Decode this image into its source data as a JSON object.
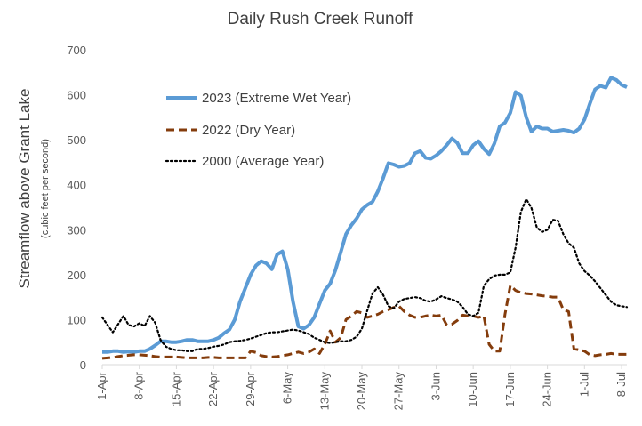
{
  "chart_data": {
    "type": "line",
    "title": "Daily Rush Creek Runoff",
    "ylabel": "Streamflow above Grant Lake",
    "ylabel_sub": "(cubic feet per second)",
    "xlabel": "",
    "ylim": [
      0,
      700
    ],
    "yticks": [
      0,
      100,
      200,
      300,
      400,
      500,
      600,
      700
    ],
    "grid": false,
    "legend_position": "upper-left",
    "x_start_date": "1-Apr",
    "x_tick_labels": [
      "1-Apr",
      "8-Apr",
      "15-Apr",
      "22-Apr",
      "29-Apr",
      "6-May",
      "13-May",
      "20-May",
      "27-May",
      "3-Jun",
      "10-Jun",
      "17-Jun",
      "24-Jun",
      "1-Jul",
      "8-Jul"
    ],
    "series": [
      {
        "name": "2023 (Extreme Wet Year)",
        "color": "#5B9BD5",
        "style": "solid",
        "points": [
          [
            0,
            28
          ],
          [
            1,
            28
          ],
          [
            2,
            30
          ],
          [
            3,
            30
          ],
          [
            4,
            28
          ],
          [
            5,
            29
          ],
          [
            6,
            28
          ],
          [
            7,
            30
          ],
          [
            8,
            30
          ],
          [
            9,
            35
          ],
          [
            10,
            43
          ],
          [
            11,
            52
          ],
          [
            12,
            52
          ],
          [
            13,
            50
          ],
          [
            14,
            50
          ],
          [
            15,
            52
          ],
          [
            16,
            55
          ],
          [
            17,
            55
          ],
          [
            18,
            52
          ],
          [
            19,
            52
          ],
          [
            20,
            52
          ],
          [
            21,
            55
          ],
          [
            22,
            60
          ],
          [
            23,
            70
          ],
          [
            24,
            78
          ],
          [
            25,
            100
          ],
          [
            26,
            140
          ],
          [
            27,
            170
          ],
          [
            28,
            200
          ],
          [
            29,
            220
          ],
          [
            30,
            230
          ],
          [
            31,
            225
          ],
          [
            32,
            212
          ],
          [
            33,
            245
          ],
          [
            34,
            252
          ],
          [
            35,
            212
          ],
          [
            36,
            140
          ],
          [
            37,
            85
          ],
          [
            38,
            80
          ],
          [
            39,
            88
          ],
          [
            40,
            105
          ],
          [
            41,
            135
          ],
          [
            42,
            165
          ],
          [
            43,
            180
          ],
          [
            44,
            210
          ],
          [
            45,
            250
          ],
          [
            46,
            290
          ],
          [
            47,
            310
          ],
          [
            48,
            325
          ],
          [
            49,
            345
          ],
          [
            50,
            355
          ],
          [
            51,
            362
          ],
          [
            52,
            385
          ],
          [
            53,
            415
          ],
          [
            54,
            448
          ],
          [
            55,
            445
          ],
          [
            56,
            440
          ],
          [
            57,
            442
          ],
          [
            58,
            448
          ],
          [
            59,
            470
          ],
          [
            60,
            475
          ],
          [
            61,
            460
          ],
          [
            62,
            458
          ],
          [
            63,
            465
          ],
          [
            64,
            475
          ],
          [
            65,
            488
          ],
          [
            66,
            503
          ],
          [
            67,
            493
          ],
          [
            68,
            470
          ],
          [
            69,
            470
          ],
          [
            70,
            488
          ],
          [
            71,
            497
          ],
          [
            72,
            480
          ],
          [
            73,
            468
          ],
          [
            74,
            492
          ],
          [
            75,
            530
          ],
          [
            76,
            538
          ],
          [
            77,
            560
          ],
          [
            78,
            606
          ],
          [
            79,
            598
          ],
          [
            80,
            550
          ],
          [
            81,
            518
          ],
          [
            82,
            530
          ],
          [
            83,
            525
          ],
          [
            84,
            525
          ],
          [
            85,
            518
          ],
          [
            86,
            520
          ],
          [
            87,
            522
          ],
          [
            88,
            520
          ],
          [
            89,
            516
          ],
          [
            90,
            525
          ],
          [
            91,
            545
          ],
          [
            92,
            580
          ],
          [
            93,
            612
          ],
          [
            94,
            620
          ],
          [
            95,
            616
          ],
          [
            96,
            638
          ],
          [
            97,
            633
          ],
          [
            98,
            622
          ],
          [
            99,
            617
          ]
        ]
      },
      {
        "name": "2022 (Dry Year)",
        "color": "#843C0C",
        "style": "dashed",
        "points": [
          [
            0,
            14
          ],
          [
            1,
            15
          ],
          [
            2,
            16
          ],
          [
            3,
            18
          ],
          [
            4,
            20
          ],
          [
            5,
            21
          ],
          [
            6,
            22
          ],
          [
            7,
            22
          ],
          [
            8,
            21
          ],
          [
            9,
            20
          ],
          [
            10,
            18
          ],
          [
            11,
            17
          ],
          [
            12,
            17
          ],
          [
            13,
            17
          ],
          [
            14,
            17
          ],
          [
            15,
            16
          ],
          [
            16,
            15
          ],
          [
            17,
            15
          ],
          [
            18,
            15
          ],
          [
            19,
            15
          ],
          [
            20,
            16
          ],
          [
            21,
            16
          ],
          [
            22,
            15
          ],
          [
            23,
            15
          ],
          [
            24,
            15
          ],
          [
            25,
            15
          ],
          [
            26,
            15
          ],
          [
            27,
            15
          ],
          [
            28,
            30
          ],
          [
            29,
            27
          ],
          [
            30,
            20
          ],
          [
            31,
            18
          ],
          [
            32,
            17
          ],
          [
            33,
            18
          ],
          [
            34,
            20
          ],
          [
            35,
            22
          ],
          [
            36,
            25
          ],
          [
            37,
            28
          ],
          [
            38,
            25
          ],
          [
            39,
            28
          ],
          [
            40,
            35
          ],
          [
            41,
            25
          ],
          [
            42,
            45
          ],
          [
            43,
            75
          ],
          [
            44,
            50
          ],
          [
            45,
            60
          ],
          [
            46,
            100
          ],
          [
            47,
            108
          ],
          [
            48,
            118
          ],
          [
            49,
            115
          ],
          [
            50,
            105
          ],
          [
            51,
            108
          ],
          [
            52,
            112
          ],
          [
            53,
            118
          ],
          [
            54,
            122
          ],
          [
            55,
            127
          ],
          [
            56,
            130
          ],
          [
            57,
            118
          ],
          [
            58,
            110
          ],
          [
            59,
            105
          ],
          [
            60,
            105
          ],
          [
            61,
            108
          ],
          [
            62,
            110
          ],
          [
            63,
            108
          ],
          [
            64,
            110
          ],
          [
            65,
            88
          ],
          [
            66,
            90
          ],
          [
            67,
            98
          ],
          [
            68,
            110
          ],
          [
            69,
            108
          ],
          [
            70,
            108
          ],
          [
            71,
            105
          ],
          [
            72,
            108
          ],
          [
            73,
            45
          ],
          [
            74,
            30
          ],
          [
            75,
            30
          ],
          [
            76,
            112
          ],
          [
            77,
            176
          ],
          [
            78,
            165
          ],
          [
            79,
            160
          ],
          [
            80,
            158
          ],
          [
            81,
            157
          ],
          [
            82,
            155
          ],
          [
            83,
            153
          ],
          [
            84,
            152
          ],
          [
            85,
            150
          ],
          [
            86,
            150
          ],
          [
            87,
            122
          ],
          [
            88,
            118
          ],
          [
            89,
            35
          ],
          [
            90,
            33
          ],
          [
            91,
            30
          ],
          [
            92,
            22
          ],
          [
            93,
            20
          ],
          [
            94,
            22
          ],
          [
            95,
            23
          ],
          [
            96,
            25
          ],
          [
            97,
            23
          ],
          [
            98,
            23
          ],
          [
            99,
            23
          ]
        ]
      },
      {
        "name": "2000 (Average Year)",
        "color": "#000000",
        "style": "dotted",
        "points": [
          [
            0,
            105
          ],
          [
            1,
            88
          ],
          [
            2,
            72
          ],
          [
            3,
            90
          ],
          [
            4,
            108
          ],
          [
            5,
            88
          ],
          [
            6,
            85
          ],
          [
            7,
            92
          ],
          [
            8,
            86
          ],
          [
            9,
            108
          ],
          [
            10,
            93
          ],
          [
            11,
            55
          ],
          [
            12,
            40
          ],
          [
            13,
            35
          ],
          [
            14,
            32
          ],
          [
            15,
            32
          ],
          [
            16,
            30
          ],
          [
            17,
            30
          ],
          [
            18,
            35
          ],
          [
            19,
            35
          ],
          [
            20,
            37
          ],
          [
            21,
            40
          ],
          [
            22,
            42
          ],
          [
            23,
            45
          ],
          [
            24,
            50
          ],
          [
            25,
            52
          ],
          [
            26,
            53
          ],
          [
            27,
            55
          ],
          [
            28,
            58
          ],
          [
            29,
            62
          ],
          [
            30,
            66
          ],
          [
            31,
            70
          ],
          [
            32,
            72
          ],
          [
            33,
            72
          ],
          [
            34,
            74
          ],
          [
            35,
            76
          ],
          [
            36,
            78
          ],
          [
            37,
            76
          ],
          [
            38,
            72
          ],
          [
            39,
            68
          ],
          [
            40,
            60
          ],
          [
            41,
            55
          ],
          [
            42,
            50
          ],
          [
            43,
            48
          ],
          [
            44,
            50
          ],
          [
            45,
            52
          ],
          [
            46,
            52
          ],
          [
            47,
            55
          ],
          [
            48,
            62
          ],
          [
            49,
            80
          ],
          [
            50,
            120
          ],
          [
            51,
            158
          ],
          [
            52,
            172
          ],
          [
            53,
            155
          ],
          [
            54,
            130
          ],
          [
            55,
            125
          ],
          [
            56,
            140
          ],
          [
            57,
            146
          ],
          [
            58,
            148
          ],
          [
            59,
            150
          ],
          [
            60,
            148
          ],
          [
            61,
            142
          ],
          [
            62,
            140
          ],
          [
            63,
            145
          ],
          [
            64,
            152
          ],
          [
            65,
            148
          ],
          [
            66,
            145
          ],
          [
            67,
            140
          ],
          [
            68,
            128
          ],
          [
            69,
            112
          ],
          [
            70,
            108
          ],
          [
            71,
            115
          ],
          [
            72,
            175
          ],
          [
            73,
            190
          ],
          [
            74,
            198
          ],
          [
            75,
            200
          ],
          [
            76,
            200
          ],
          [
            77,
            205
          ],
          [
            78,
            260
          ],
          [
            79,
            340
          ],
          [
            80,
            368
          ],
          [
            81,
            348
          ],
          [
            82,
            305
          ],
          [
            83,
            295
          ],
          [
            84,
            300
          ],
          [
            85,
            322
          ],
          [
            86,
            320
          ],
          [
            87,
            290
          ],
          [
            88,
            270
          ],
          [
            89,
            260
          ],
          [
            90,
            225
          ],
          [
            91,
            208
          ],
          [
            92,
            198
          ],
          [
            93,
            185
          ],
          [
            94,
            170
          ],
          [
            95,
            155
          ],
          [
            96,
            140
          ],
          [
            97,
            132
          ],
          [
            98,
            130
          ],
          [
            99,
            128
          ]
        ]
      }
    ]
  }
}
